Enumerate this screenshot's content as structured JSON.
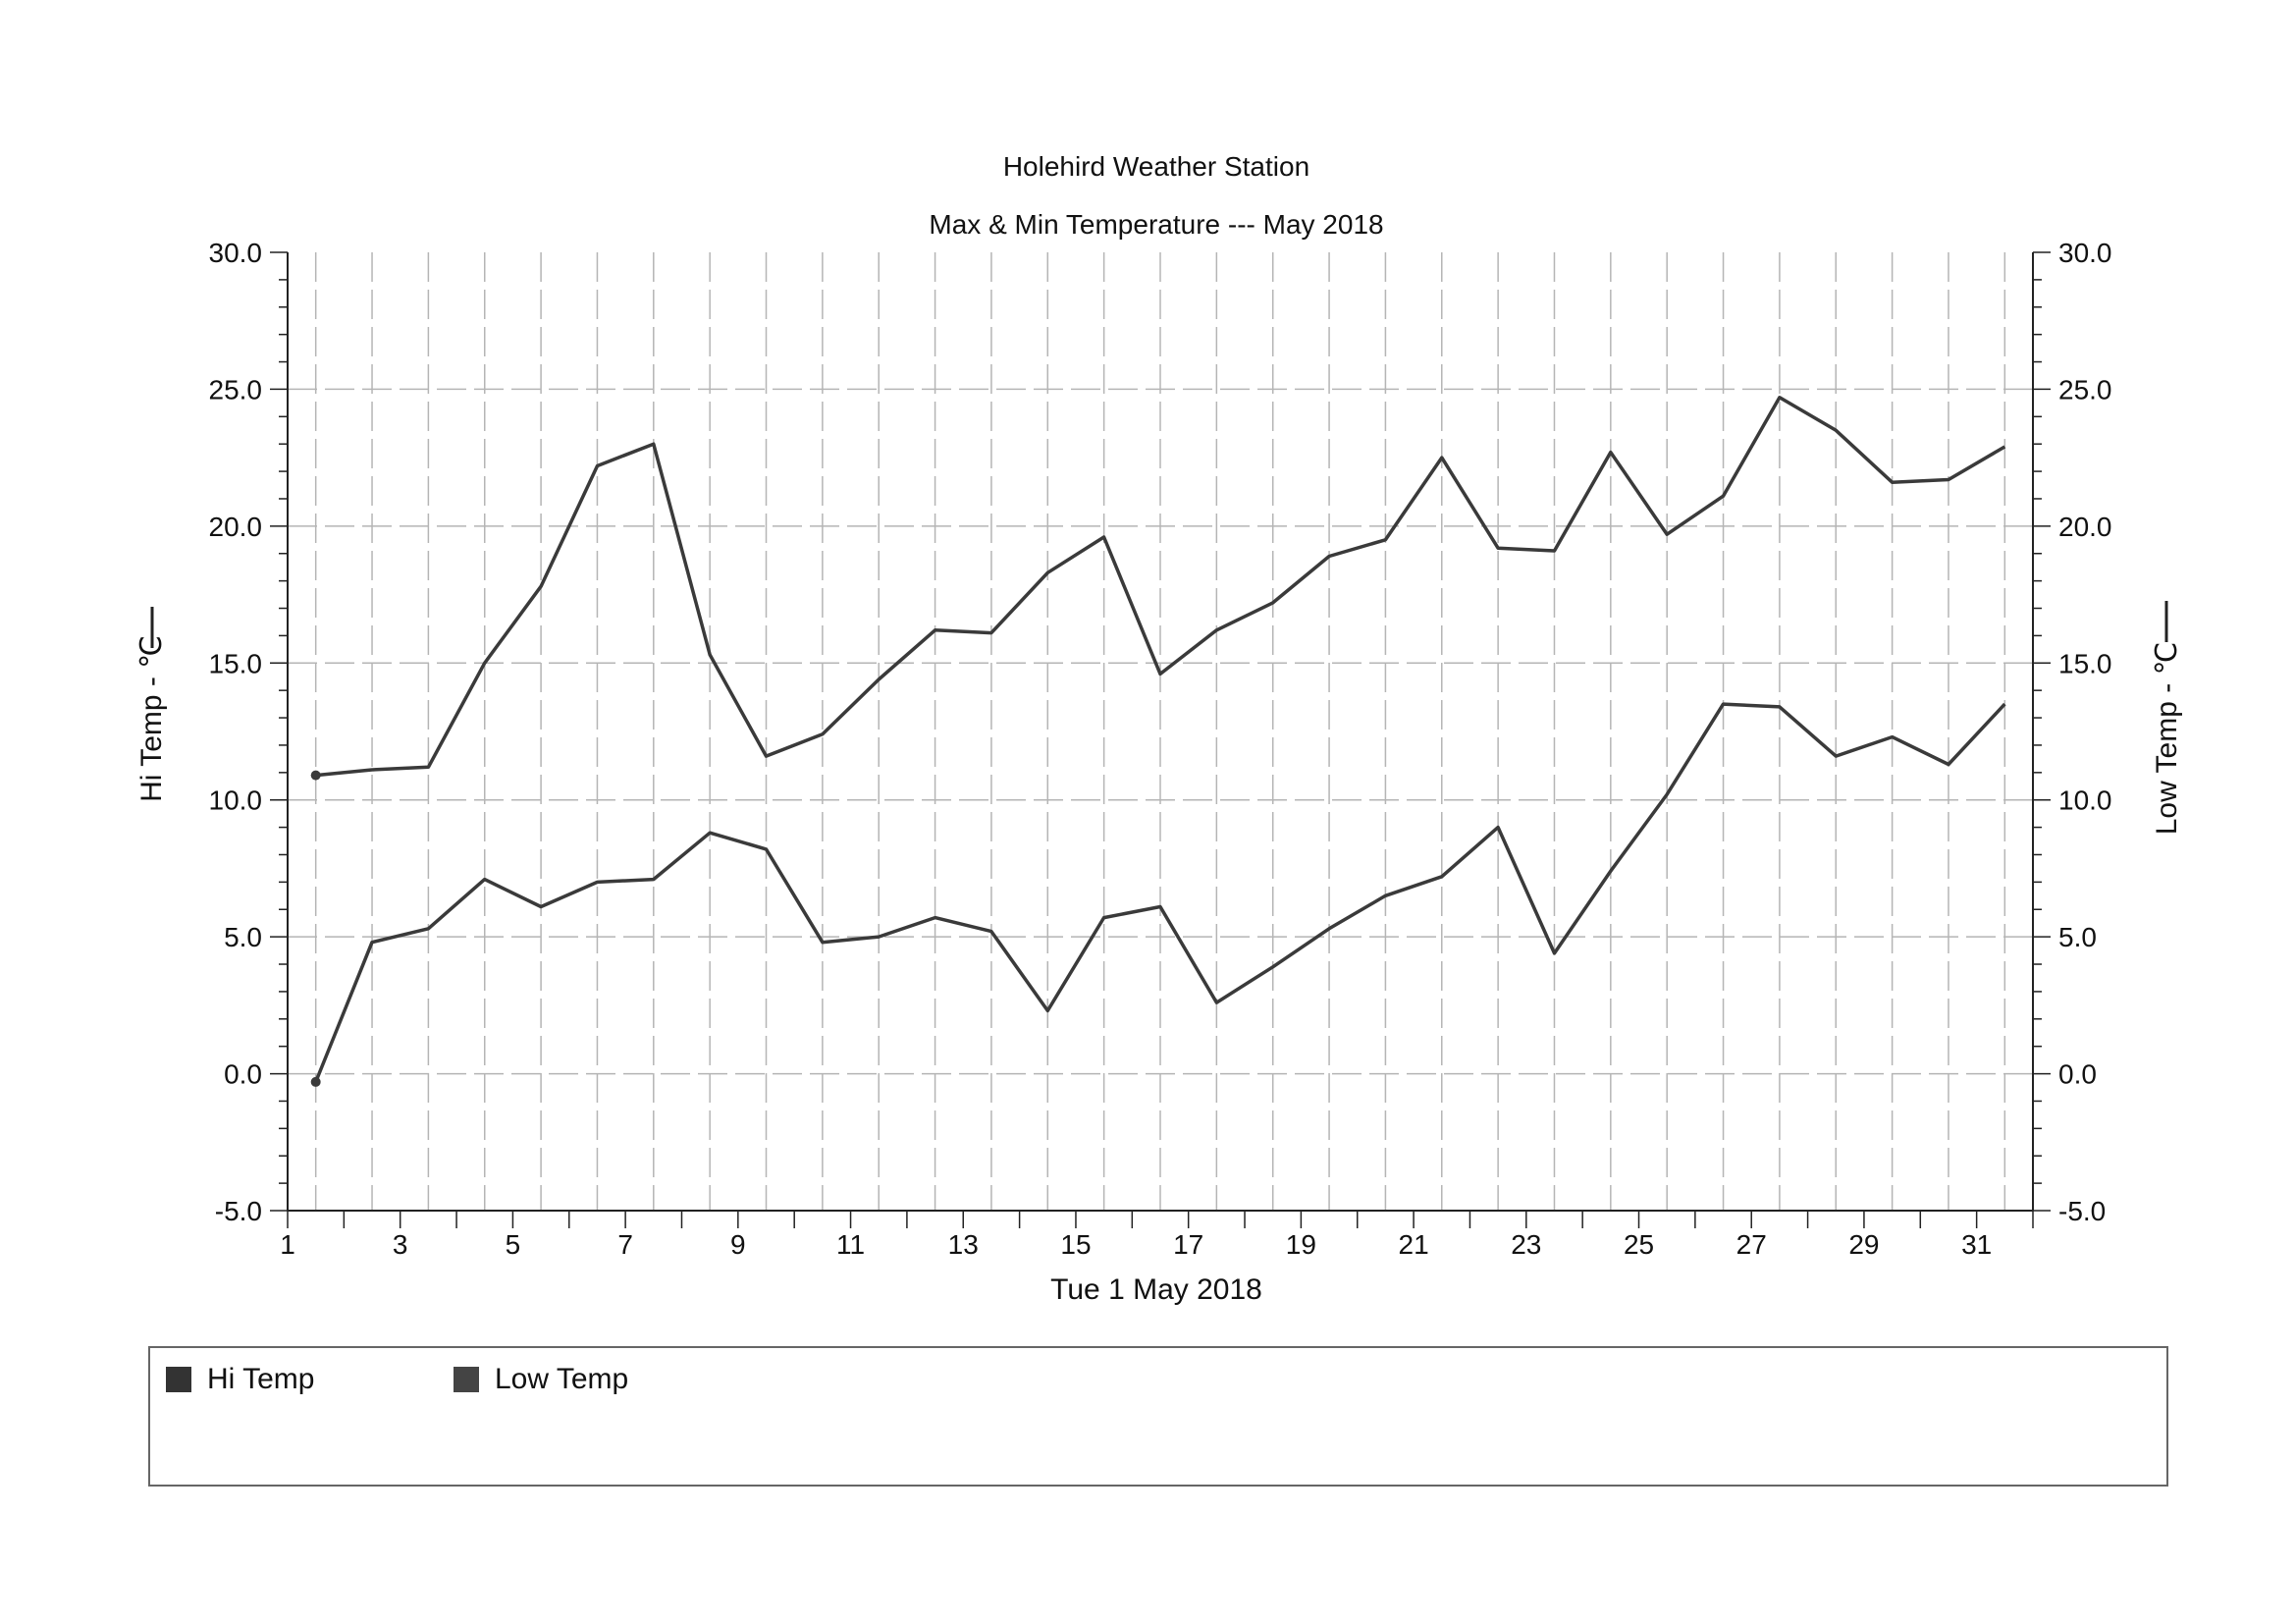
{
  "chart_data": {
    "type": "line",
    "title": "Holehird Weather Station",
    "subtitle": "Max & Min Temperature --- May 2018",
    "xlabel": "Tue 1 May 2018",
    "ylabel_left": "Hi Temp - ℃",
    "ylabel_right": "Low Temp - ℃",
    "ylim": [
      -5,
      30
    ],
    "xlim": [
      1,
      32
    ],
    "yticks": [
      "-5.0",
      "0.0",
      "5.0",
      "10.0",
      "15.0",
      "20.0",
      "25.0",
      "30.0"
    ],
    "xticks": [
      "1",
      "3",
      "5",
      "7",
      "9",
      "11",
      "13",
      "15",
      "17",
      "19",
      "21",
      "23",
      "25",
      "27",
      "29",
      "31"
    ],
    "grid": true,
    "legend_position": "bottom",
    "line_color": "#3a3a3a",
    "series": [
      {
        "name": "Hi Temp",
        "color": "#333333",
        "x": [
          1.5,
          2.5,
          3.5,
          4.5,
          5.5,
          6.5,
          7.5,
          8.5,
          9.5,
          10.5,
          11.5,
          12.5,
          13.5,
          14.5,
          15.5,
          16.5,
          17.5,
          18.5,
          19.5,
          20.5,
          21.5,
          22.5,
          23.5,
          24.5,
          25.5,
          26.5,
          27.5,
          28.5,
          29.5,
          30.5,
          31.5
        ],
        "values": [
          10.9,
          11.1,
          11.2,
          15.0,
          17.8,
          22.2,
          23.0,
          15.3,
          11.6,
          12.4,
          14.4,
          16.2,
          16.1,
          18.3,
          19.6,
          14.6,
          16.2,
          17.2,
          18.9,
          19.5,
          22.5,
          19.2,
          19.1,
          22.7,
          19.7,
          21.1,
          24.7,
          23.5,
          21.6,
          21.7,
          22.9
        ]
      },
      {
        "name": "Low Temp",
        "color": "#444444",
        "x": [
          1.5,
          2.5,
          3.5,
          4.5,
          5.5,
          6.5,
          7.5,
          8.5,
          9.5,
          10.5,
          11.5,
          12.5,
          13.5,
          14.5,
          15.5,
          16.5,
          17.5,
          18.5,
          19.5,
          20.5,
          21.5,
          22.5,
          23.5,
          24.5,
          25.5,
          26.5,
          27.5,
          28.5,
          29.5,
          30.5,
          31.5
        ],
        "values": [
          -0.3,
          4.8,
          5.3,
          7.1,
          6.1,
          7.0,
          7.1,
          8.8,
          8.2,
          4.8,
          5.0,
          5.7,
          5.2,
          2.3,
          5.7,
          6.1,
          2.6,
          3.9,
          5.3,
          6.5,
          7.2,
          9.0,
          4.4,
          7.4,
          10.2,
          13.5,
          13.4,
          11.6,
          12.3,
          11.3,
          13.5
        ]
      }
    ]
  }
}
